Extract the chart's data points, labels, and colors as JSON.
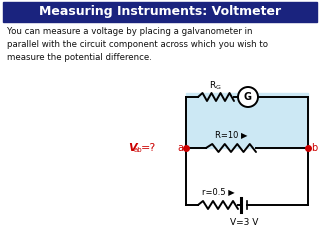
{
  "title": "Measuring Instruments: Voltmeter",
  "title_bg": "#1a237e",
  "title_color": "#ffffff",
  "body_text": "You can measure a voltage by placing a galvanometer in\nparallel with the circuit component across which you wish to\nmeasure the potential difference.",
  "body_text_color": "#111111",
  "voltmeter_bg": "#cce8f4",
  "circuit_color": "#000000",
  "label_ab_color": "#cc0000",
  "label_vab_color": "#cc0000",
  "bg_color": "#ffffff",
  "R_label": "R=10 ▶",
  "r_label": "r=0.5 ▶",
  "V_label": "V=3 V",
  "RG_label": "R",
  "RG_sub": "G",
  "G_label": "G",
  "Vab_main": "V",
  "Vab_sub": "ab",
  "Vab_suffix": "=?"
}
